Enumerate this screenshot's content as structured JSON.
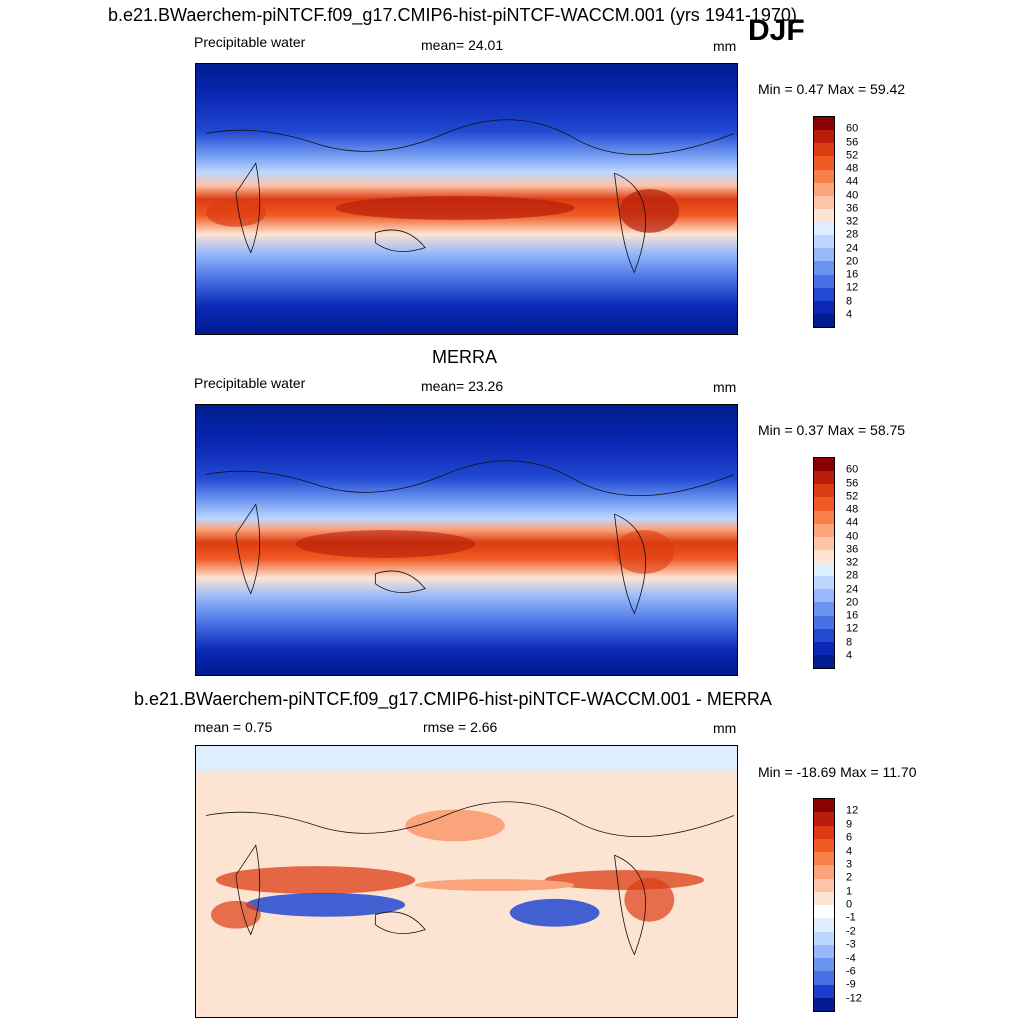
{
  "header": {
    "title": "b.e21.BWaerchem-piNTCF.f09_g17.CMIP6-hist-piNTCF-WACCM.001 (yrs 1941-1970)",
    "season": "DJF"
  },
  "panels": [
    {
      "id": "model",
      "title": "",
      "left_label": "Precipitable water",
      "center_label": "mean=  24.01",
      "units": "mm",
      "minmax": "Min =   0.47 Max =  59.42",
      "colorbar_ticks": [
        "60",
        "56",
        "52",
        "48",
        "44",
        "40",
        "36",
        "32",
        "28",
        "24",
        "20",
        "16",
        "12",
        "8",
        "4"
      ],
      "colorbar_colors": [
        "#8b0000",
        "#b81e0a",
        "#dc3c12",
        "#f05a23",
        "#f77f48",
        "#fba37a",
        "#fdc4a8",
        "#fde4d2",
        "#ddeeff",
        "#bcd6ff",
        "#97b9fb",
        "#6b94f0",
        "#4670e4",
        "#2249d2",
        "#0a28b4",
        "#001c90"
      ]
    },
    {
      "id": "obs",
      "title": "MERRA",
      "left_label": "Precipitable water",
      "center_label": "mean=  23.26",
      "units": "mm",
      "minmax": "Min =   0.37 Max =  58.75",
      "colorbar_ticks": [
        "60",
        "56",
        "52",
        "48",
        "44",
        "40",
        "36",
        "32",
        "28",
        "24",
        "20",
        "16",
        "12",
        "8",
        "4"
      ],
      "colorbar_colors": [
        "#8b0000",
        "#b81e0a",
        "#dc3c12",
        "#f05a23",
        "#f77f48",
        "#fba37a",
        "#fdc4a8",
        "#fde4d2",
        "#ddeeff",
        "#bcd6ff",
        "#97b9fb",
        "#6b94f0",
        "#4670e4",
        "#2249d2",
        "#0a28b4",
        "#001c90"
      ]
    },
    {
      "id": "diff",
      "title": "b.e21.BWaerchem-piNTCF.f09_g17.CMIP6-hist-piNTCF-WACCM.001 - MERRA",
      "left_label": "mean =   0.75",
      "center_label": "rmse =   2.66",
      "units": "mm",
      "minmax": "Min = -18.69 Max =  11.70",
      "colorbar_ticks": [
        "12",
        "9",
        "6",
        "4",
        "3",
        "2",
        "1",
        "0",
        "-1",
        "-2",
        "-3",
        "-4",
        "-6",
        "-9",
        "-12"
      ],
      "colorbar_colors": [
        "#8b0000",
        "#b81e0a",
        "#dc3c12",
        "#f05a23",
        "#f77f48",
        "#fba37a",
        "#fdc4a8",
        "#fde4d2",
        "#ffffff",
        "#ddeeff",
        "#bcd6ff",
        "#97b9fb",
        "#6b94f0",
        "#4670e4",
        "#1e3cd2",
        "#001c90"
      ]
    }
  ]
}
